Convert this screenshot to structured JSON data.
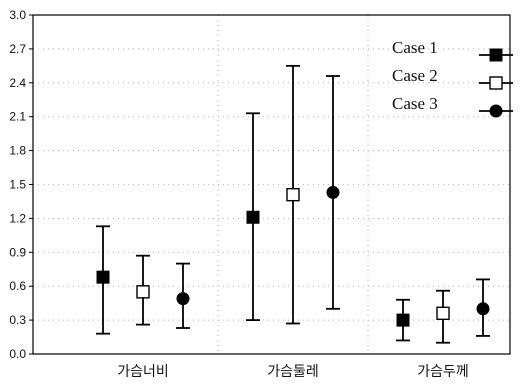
{
  "chart_data": {
    "type": "scatter",
    "title": "",
    "xlabel": "",
    "ylabel": "",
    "ylim": [
      0.0,
      3.0
    ],
    "yticks": [
      "0.0",
      "0.3",
      "0.6",
      "0.9",
      "1.2",
      "1.5",
      "1.8",
      "2.1",
      "2.4",
      "2.7",
      "3.0"
    ],
    "categories": [
      "가슴너비",
      "가슴둘레",
      "가슴두께"
    ],
    "grid": true,
    "legend_position": "top-right",
    "series": [
      {
        "name": "Case 1",
        "marker": "filled-square",
        "values": [
          0.68,
          1.21,
          0.3
        ],
        "lower": [
          0.18,
          0.3,
          0.12
        ],
        "upper": [
          1.13,
          2.13,
          0.48
        ]
      },
      {
        "name": "Case 2",
        "marker": "open-square",
        "values": [
          0.55,
          1.41,
          0.36
        ],
        "lower": [
          0.26,
          0.27,
          0.1
        ],
        "upper": [
          0.87,
          2.55,
          0.56
        ]
      },
      {
        "name": "Case 3",
        "marker": "filled-circle",
        "values": [
          0.49,
          1.43,
          0.4
        ],
        "lower": [
          0.23,
          0.4,
          0.16
        ],
        "upper": [
          0.8,
          2.46,
          0.66
        ]
      }
    ]
  }
}
